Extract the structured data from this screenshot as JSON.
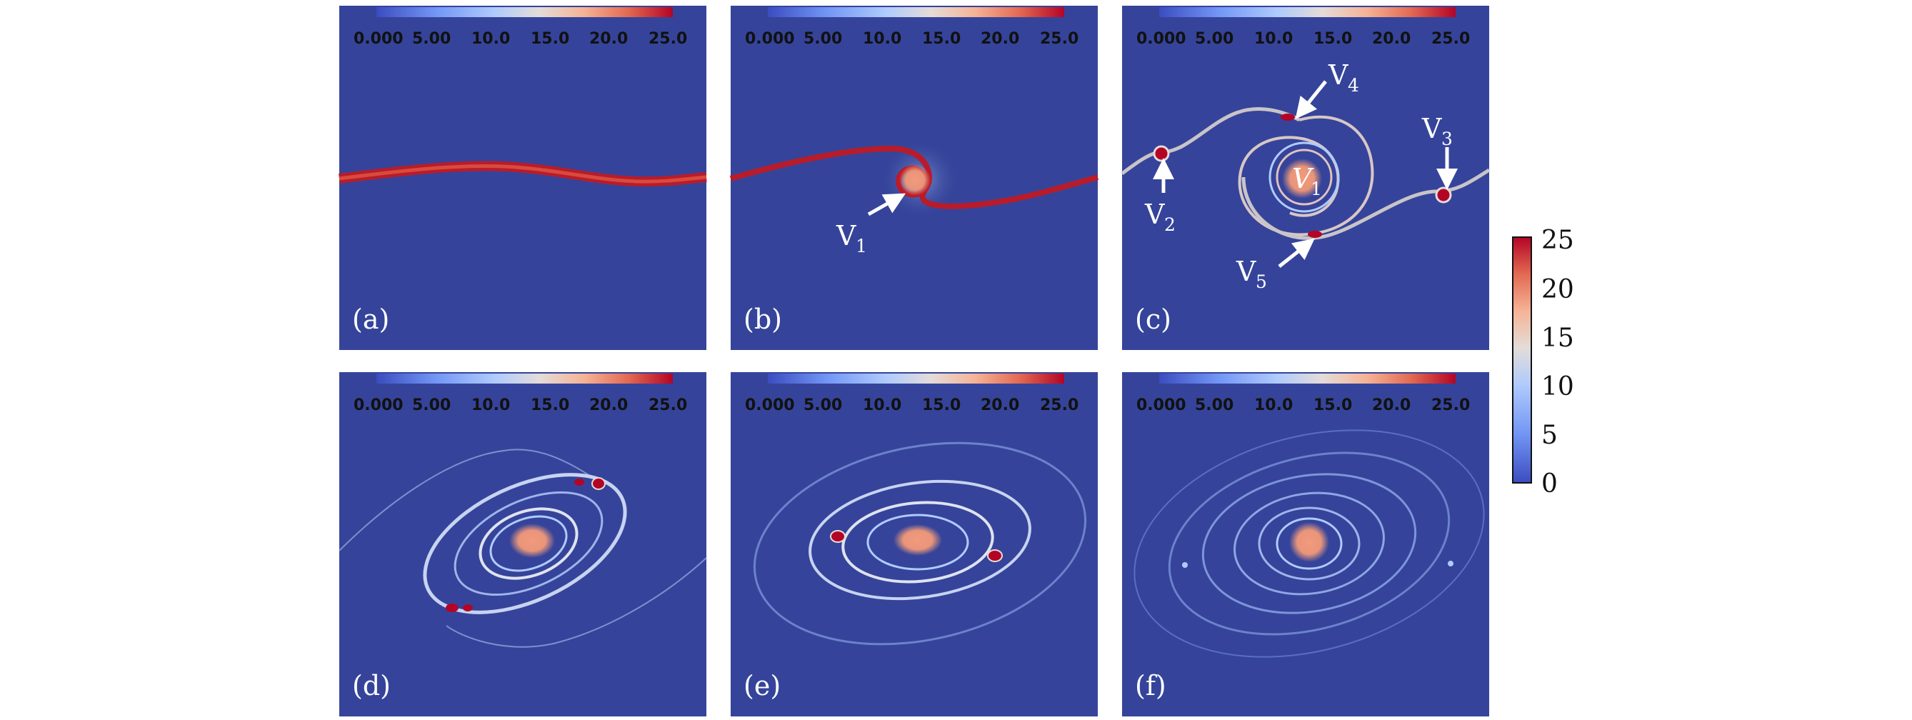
{
  "colorbar": {
    "ticks": [
      "0.000",
      "5.00",
      "10.0",
      "15.0",
      "20.0",
      "25.0"
    ],
    "colors": [
      "#3b4cc0",
      "#7396f5",
      "#b0cbfc",
      "#dddcdc",
      "#f5b396",
      "#e26952",
      "#b40426"
    ]
  },
  "side_colorbar": {
    "ticks": [
      "25",
      "20",
      "15",
      "10",
      "5",
      "0"
    ]
  },
  "panels": [
    {
      "label": "(a)"
    },
    {
      "label": "(b)"
    },
    {
      "label": "(c)"
    },
    {
      "label": "(d)"
    },
    {
      "label": "(e)"
    },
    {
      "label": "(f)"
    }
  ],
  "annotations": {
    "b_v1": {
      "main": "V",
      "sub": "1"
    },
    "c_v1": {
      "main": "V",
      "sub": "1"
    },
    "c_v2": {
      "main": "V",
      "sub": "2"
    },
    "c_v3": {
      "main": "V",
      "sub": "3"
    },
    "c_v4": {
      "main": "V",
      "sub": "4"
    },
    "c_v5": {
      "main": "V",
      "sub": "5"
    }
  },
  "background_color": "#35449a"
}
